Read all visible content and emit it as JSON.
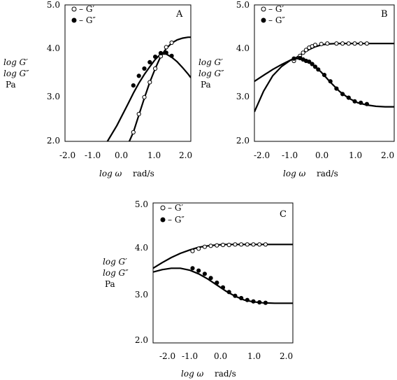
{
  "chart_data": [
    {
      "type": "line",
      "panel_label": "A",
      "xlim": [
        -2.5,
        2.1
      ],
      "ylim": [
        2.0,
        5.0
      ],
      "x_ticks": [
        "-2.0",
        "-1.0",
        "0.0",
        "1.0",
        "2.0"
      ],
      "y_ticks": [
        "2.0",
        "3.0",
        "4.0",
        "5.0"
      ],
      "series": [
        {
          "name": "G′",
          "marker": "open-circle",
          "curve": {
            "x": [
              -0.15,
              0.0,
              0.2,
              0.4,
              0.6,
              0.8,
              1.0,
              1.2,
              1.4,
              1.6,
              1.8,
              2.0,
              2.1
            ],
            "y": [
              2.0,
              2.2,
              2.58,
              2.95,
              3.3,
              3.6,
              3.87,
              4.04,
              4.16,
              4.23,
              4.27,
              4.29,
              4.29
            ]
          },
          "points": {
            "x": [
              0.0,
              0.2,
              0.4,
              0.6,
              0.8,
              1.0,
              1.2,
              1.4
            ],
            "y": [
              2.2,
              2.6,
              2.97,
              3.3,
              3.6,
              3.87,
              4.07,
              4.17
            ]
          }
        },
        {
          "name": "G″",
          "marker": "filled-circle",
          "curve": {
            "x": [
              -0.95,
              -0.6,
              -0.2,
              0.0,
              0.2,
              0.4,
              0.6,
              0.8,
              1.0,
              1.2,
              1.4,
              1.6,
              1.8,
              2.0,
              2.1
            ],
            "y": [
              2.0,
              2.35,
              2.82,
              3.06,
              3.28,
              3.47,
              3.64,
              3.8,
              3.92,
              3.92,
              3.85,
              3.75,
              3.62,
              3.48,
              3.4
            ]
          },
          "points": {
            "x": [
              0.0,
              0.2,
              0.4,
              0.6,
              0.8,
              1.0,
              1.2,
              1.4
            ],
            "y": [
              3.23,
              3.44,
              3.6,
              3.74,
              3.86,
              3.94,
              3.95,
              3.88
            ]
          }
        }
      ]
    },
    {
      "type": "line",
      "panel_label": "B",
      "xlim": [
        -2.5,
        2.1
      ],
      "ylim": [
        2.0,
        5.0
      ],
      "x_ticks": [
        "-2.0",
        "-1.0",
        "0.0",
        "1.0",
        "2.0"
      ],
      "y_ticks": [
        "2.0",
        "3.0",
        "4.0",
        "5.0"
      ],
      "series": [
        {
          "name": "G′",
          "marker": "open-circle",
          "curve": {
            "x": [
              -2.5,
              -2.2,
              -1.9,
              -1.6,
              -1.3,
              -1.1,
              -0.9,
              -0.7,
              -0.5,
              -0.3,
              -0.1,
              0.2,
              0.6,
              1.0,
              1.5,
              2.1
            ],
            "y": [
              3.32,
              3.45,
              3.58,
              3.69,
              3.79,
              3.85,
              3.94,
              4.02,
              4.08,
              4.12,
              4.14,
              4.15,
              4.15,
              4.15,
              4.15,
              4.15
            ]
          },
          "points": {
            "x": [
              -1.2,
              -1.0,
              -0.9,
              -0.8,
              -0.7,
              -0.6,
              -0.5,
              -0.3,
              -0.1,
              0.2,
              0.4,
              0.6,
              0.8,
              1.0,
              1.2
            ],
            "y": [
              3.77,
              3.88,
              3.95,
              4.01,
              4.06,
              4.09,
              4.12,
              4.14,
              4.15,
              4.15,
              4.15,
              4.15,
              4.15,
              4.15,
              4.15
            ]
          }
        },
        {
          "name": "G″",
          "marker": "filled-circle",
          "curve": {
            "x": [
              -2.5,
              -2.2,
              -1.9,
              -1.6,
              -1.3,
              -1.1,
              -0.9,
              -0.6,
              -0.3,
              0.0,
              0.3,
              0.6,
              0.9,
              1.2,
              1.5,
              1.8,
              2.1
            ],
            "y": [
              2.65,
              3.1,
              3.44,
              3.65,
              3.79,
              3.82,
              3.8,
              3.7,
              3.52,
              3.3,
              3.1,
              2.95,
              2.85,
              2.8,
              2.77,
              2.76,
              2.76
            ]
          },
          "points": {
            "x": [
              -1.2,
              -1.0,
              -0.9,
              -0.8,
              -0.7,
              -0.6,
              -0.5,
              -0.4,
              -0.2,
              0.0,
              0.2,
              0.4,
              0.6,
              0.8,
              1.0,
              1.2
            ],
            "y": [
              3.82,
              3.83,
              3.8,
              3.77,
              3.75,
              3.7,
              3.64,
              3.58,
              3.46,
              3.32,
              3.16,
              3.04,
              2.96,
              2.88,
              2.85,
              2.82
            ]
          }
        }
      ]
    },
    {
      "type": "line",
      "panel_label": "C",
      "xlim": [
        -2.5,
        2.1
      ],
      "ylim": [
        2.0,
        5.0
      ],
      "x_ticks": [
        "-2.0",
        "-1.0",
        "0.0",
        "1.0",
        "2.0"
      ],
      "y_ticks": [
        "2.0",
        "3.0",
        "4.0",
        "5.0"
      ],
      "series": [
        {
          "name": "G′",
          "marker": "open-circle",
          "curve": {
            "x": [
              -2.5,
              -2.2,
              -1.9,
              -1.6,
              -1.3,
              -1.0,
              -0.7,
              -0.4,
              -0.1,
              0.3,
              0.8,
              1.4,
              2.1
            ],
            "y": [
              3.6,
              3.72,
              3.83,
              3.92,
              3.99,
              4.05,
              4.08,
              4.1,
              4.11,
              4.11,
              4.11,
              4.11,
              4.11
            ]
          },
          "points": {
            "x": [
              -1.2,
              -1.0,
              -0.8,
              -0.6,
              -0.4,
              -0.2,
              0.0,
              0.2,
              0.4,
              0.6,
              0.8,
              1.0,
              1.2
            ],
            "y": [
              3.97,
              4.02,
              4.06,
              4.08,
              4.09,
              4.1,
              4.1,
              4.11,
              4.11,
              4.11,
              4.11,
              4.11,
              4.11
            ]
          }
        },
        {
          "name": "G″",
          "marker": "filled-circle",
          "curve": {
            "x": [
              -2.5,
              -2.2,
              -1.9,
              -1.6,
              -1.3,
              -1.0,
              -0.7,
              -0.4,
              -0.1,
              0.2,
              0.5,
              0.8,
              1.1,
              1.5,
              2.1
            ],
            "y": [
              3.52,
              3.57,
              3.6,
              3.6,
              3.56,
              3.48,
              3.37,
              3.24,
              3.11,
              3.0,
              2.92,
              2.88,
              2.86,
              2.85,
              2.85
            ]
          },
          "points": {
            "x": [
              -1.2,
              -1.0,
              -0.8,
              -0.6,
              -0.4,
              -0.2,
              0.0,
              0.2,
              0.4,
              0.6,
              0.8,
              1.0,
              1.2
            ],
            "y": [
              3.6,
              3.55,
              3.48,
              3.39,
              3.29,
              3.19,
              3.09,
              3.01,
              2.96,
              2.92,
              2.89,
              2.87,
              2.86
            ]
          }
        }
      ]
    }
  ],
  "labels": {
    "y_line1": "log G′",
    "y_line2": "log G″",
    "y_unit": "Pa",
    "x_prefix": "log ω",
    "x_unit": "rad/s",
    "legend_gp": "– G′",
    "legend_gpp": "– G″"
  }
}
